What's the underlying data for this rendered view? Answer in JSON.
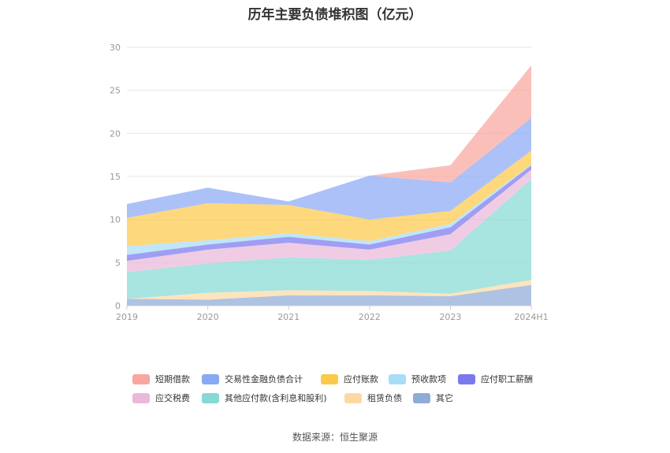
{
  "chart_data": {
    "type": "area",
    "title": "历年主要负债堆积图（亿元）",
    "categories": [
      "2019",
      "2020",
      "2021",
      "2022",
      "2023",
      "2024H1"
    ],
    "ylim": [
      0,
      30
    ],
    "yticks": [
      0,
      5,
      10,
      15,
      20,
      25,
      30
    ],
    "grid": true,
    "stacked": true,
    "legend_position": "bottom",
    "series": [
      {
        "name": "其它",
        "color": "#8fabd8",
        "values": [
          0.8,
          0.7,
          1.2,
          1.2,
          1.1,
          2.4
        ]
      },
      {
        "name": "租赁负债",
        "color": "#fcd9a4",
        "values": [
          0.0,
          0.8,
          0.6,
          0.5,
          0.3,
          0.6
        ]
      },
      {
        "name": "其他应付款(含利息和股利)",
        "color": "#86d9d4",
        "values": [
          3.1,
          3.4,
          3.8,
          3.6,
          5.0,
          11.7
        ]
      },
      {
        "name": "应交税费",
        "color": "#eab9d9",
        "values": [
          1.3,
          1.6,
          1.7,
          1.2,
          1.9,
          1.1
        ]
      },
      {
        "name": "应付职工薪酬",
        "color": "#7b78ee",
        "values": [
          0.7,
          0.6,
          0.7,
          0.6,
          0.8,
          0.5
        ]
      },
      {
        "name": "预收款项",
        "color": "#a8ddf6",
        "values": [
          1.0,
          0.5,
          0.4,
          0.4,
          0.4,
          0.1
        ]
      },
      {
        "name": "应付账款",
        "color": "#fdc94a",
        "values": [
          3.3,
          4.3,
          3.3,
          2.5,
          1.5,
          1.6
        ]
      },
      {
        "name": "交易性金融负债合计",
        "color": "#8aa9f5",
        "values": [
          1.6,
          1.8,
          0.4,
          5.1,
          3.3,
          3.8
        ]
      },
      {
        "name": "短期借款",
        "color": "#f9a6a0",
        "values": [
          0.0,
          0.0,
          0.0,
          0.0,
          2.0,
          6.1
        ]
      }
    ],
    "legend_order": [
      "短期借款",
      "交易性金融负债合计",
      "应付账款",
      "预收款项",
      "应付职工薪酬",
      "应交税费",
      "其他应付款(含利息和股利)",
      "租赁负债",
      "其它"
    ]
  },
  "source_note": "数据来源：恒生聚源"
}
